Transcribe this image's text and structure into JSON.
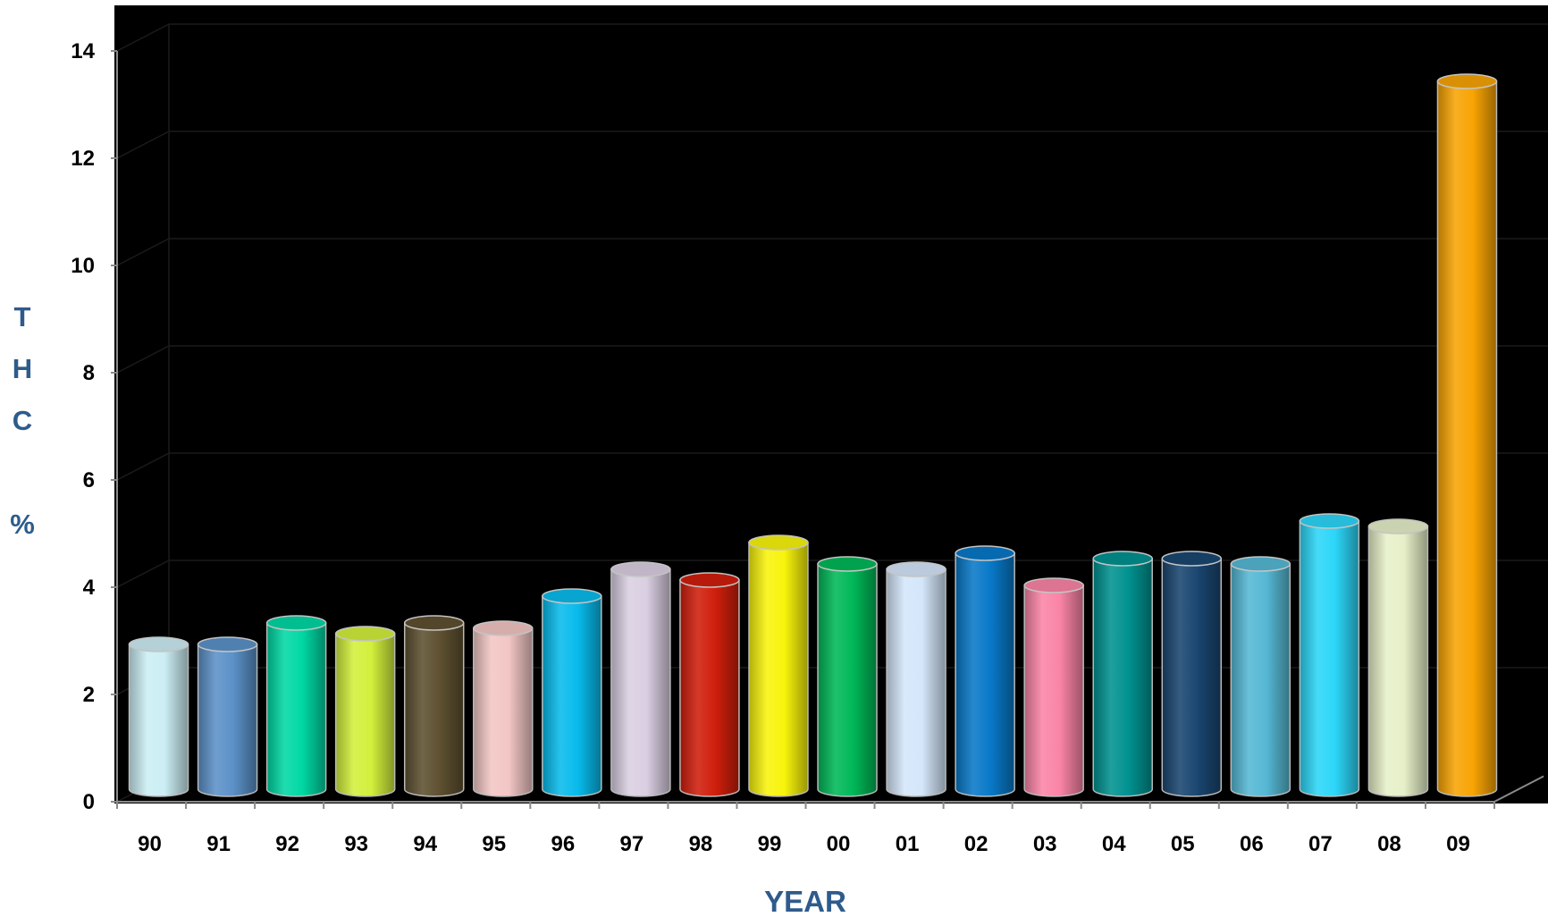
{
  "chart_data": {
    "type": "bar",
    "style": "3d-cylinder",
    "title": "",
    "xlabel": "YEAR",
    "ylabel": "THC %",
    "ylabel_letters": [
      "T",
      "H",
      "C",
      "%"
    ],
    "categories": [
      "90",
      "91",
      "92",
      "93",
      "94",
      "95",
      "96",
      "97",
      "98",
      "99",
      "00",
      "01",
      "02",
      "03",
      "04",
      "05",
      "06",
      "07",
      "08",
      "09"
    ],
    "values": [
      2.7,
      2.7,
      3.1,
      2.9,
      3.1,
      3.0,
      3.6,
      4.1,
      3.9,
      4.6,
      4.2,
      4.1,
      4.4,
      3.8,
      4.3,
      4.3,
      4.2,
      5.0,
      4.9,
      13.2
    ],
    "bar_colors": [
      "#cbeef4",
      "#5b91c8",
      "#00d8a4",
      "#d2f03c",
      "#5e5030",
      "#f2c6c4",
      "#08bbec",
      "#dacfe2",
      "#d01e0c",
      "#f8f40c",
      "#00b858",
      "#d4e6fa",
      "#0879c8",
      "#fa84a6",
      "#009290",
      "#1a4670",
      "#55b8d4",
      "#2cd6f8",
      "#e6f0c8",
      "#f8a404"
    ],
    "y_ticks": [
      "0",
      "2",
      "4",
      "6",
      "8",
      "10",
      "12",
      "14"
    ],
    "ylim": [
      0,
      14
    ],
    "grid": true,
    "legend": "none",
    "background": "#000000",
    "axis_title_color": "#2e5b8c"
  }
}
